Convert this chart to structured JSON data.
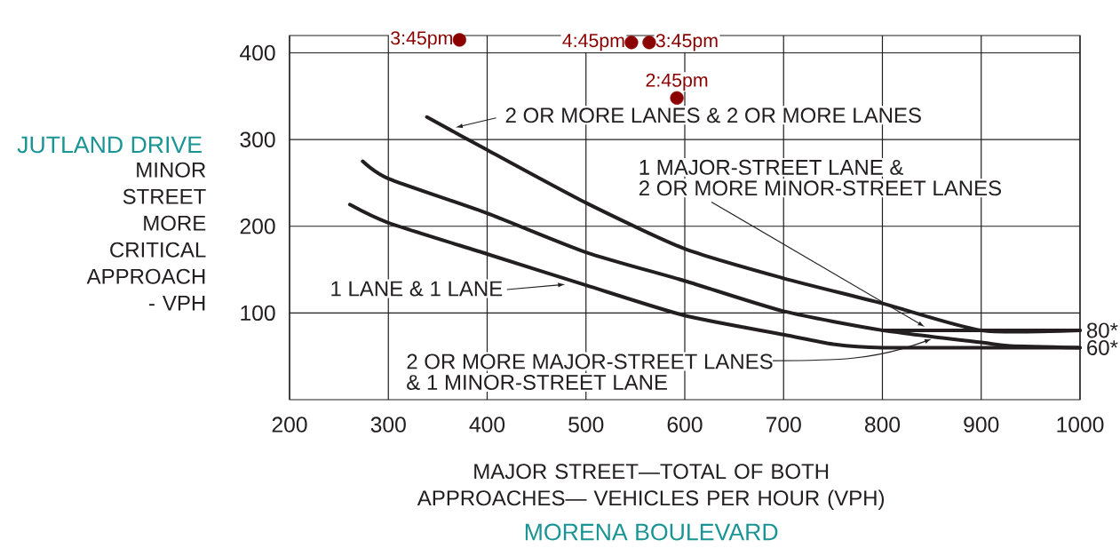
{
  "chart_data": {
    "type": "line",
    "xlabel": "MAJOR STREET—TOTAL OF BOTH APPROACHES— VEHICLES PER HOUR (VPH)",
    "ylabel": "MINOR STREET MORE CRITICAL APPROACH - VPH",
    "xlim": [
      200,
      1000
    ],
    "ylim": [
      0,
      420
    ],
    "xticks": [
      200,
      300,
      400,
      500,
      600,
      700,
      800,
      900,
      1000
    ],
    "yticks": [
      100,
      200,
      300,
      400
    ],
    "grid": true,
    "series": [
      {
        "color": "#231f20",
        "x": [
          339,
          400,
          500,
          600,
          700,
          800,
          900,
          1000
        ],
        "values": [
          326,
          288,
          227,
          174,
          140,
          111,
          80,
          80
        ]
      },
      {
        "color": "#231f20",
        "x": [
          274,
          300,
          400,
          500,
          600,
          700,
          800,
          900,
          929,
          1000
        ],
        "values": [
          275,
          255,
          215,
          170,
          137,
          102,
          80,
          66,
          62,
          60
        ]
      },
      {
        "color": "#231f20",
        "x": [
          800,
          1000
        ],
        "values": [
          80,
          80
        ]
      },
      {
        "color": "#231f20",
        "x": [
          261,
          300,
          400,
          500,
          600,
          700,
          750,
          800,
          1000
        ],
        "values": [
          225,
          204,
          168,
          132,
          97,
          75,
          64,
          60,
          60
        ]
      },
      {
        "type": "scatter",
        "marker": "circle",
        "color": "#8b0000",
        "x": [
          372,
          546,
          564,
          592
        ],
        "values": [
          415,
          412,
          412,
          348
        ]
      }
    ],
    "annotations": [
      "JUTLAND DRIVE",
      "MORENA BOULEVARD",
      {
        "text": "2 OR MORE LANES & 2 OR MORE LANES",
        "x": 368,
        "y": 314
      },
      "1 MAJOR-STREET LANE &",
      {
        "text": "2 OR MORE MINOR-STREET LANES",
        "x": 843,
        "y": 84
      },
      {
        "text": "1 LANE & 1 LANE",
        "x": 479,
        "y": 133
      },
      {
        "text": "2 OR MORE MAJOR-STREET LANES",
        "x": 850,
        "y": 70
      },
      "& 1 MINOR-STREET LANE",
      {
        "text": "80*",
        "x": 1000,
        "y": 80
      },
      {
        "text": "60*",
        "x": 1000,
        "y": 60
      },
      {
        "text": "3:45pm",
        "x": 372,
        "y": 415
      },
      {
        "text": "4:45pm",
        "x": 546,
        "y": 412
      },
      {
        "text": "3:45pm",
        "x": 564,
        "y": 412
      },
      {
        "text": "2:45pm",
        "x": 592,
        "y": 348
      }
    ]
  }
}
